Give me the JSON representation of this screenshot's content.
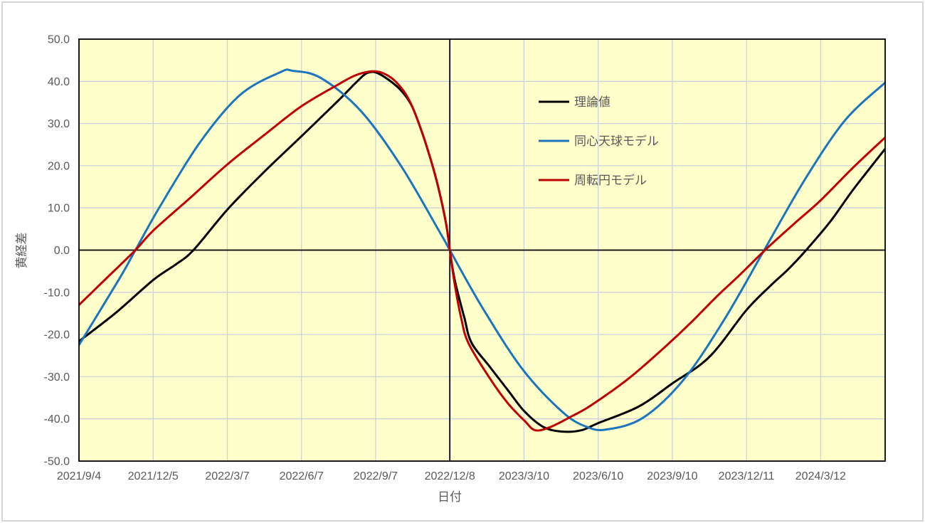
{
  "chart_data": {
    "type": "line",
    "title": "",
    "xlabel": "日付",
    "ylabel": "黄経差",
    "ylim": [
      -50,
      50
    ],
    "y_ticks": [
      50,
      40,
      30,
      20,
      10,
      0,
      -10,
      -20,
      -30,
      -40,
      -50
    ],
    "y_tick_labels": [
      "50.0",
      "40.0",
      "30.0",
      "20.0",
      "10.0",
      "0.0",
      "-10.0",
      "-20.0",
      "-30.0",
      "-40.0",
      "-50.0"
    ],
    "x_tick_labels": [
      "2021/9/4",
      "2021/12/5",
      "2022/3/7",
      "2022/6/7",
      "2022/9/7",
      "2022/12/8",
      "2023/3/10",
      "2023/6/10",
      "2023/9/10",
      "2023/12/11",
      "2024/3/12"
    ],
    "x_tick_days": [
      0,
      92,
      184,
      276,
      368,
      460,
      552,
      644,
      736,
      828,
      920
    ],
    "x_range_days": [
      0,
      1000
    ],
    "x_origin_date": "2021/9/4",
    "grid": true,
    "plot_bg": "#FFFFCC",
    "grid_color": "#CBD2DB",
    "axis_color": "#000000",
    "label_color": "#595959",
    "legend_position": "inside-top-center",
    "reference_lines": {
      "horizontal_y": 0,
      "vertical_day": 460,
      "vertical_date": "2022/12/8"
    },
    "series": [
      {
        "name": "理論値",
        "color": "#000000",
        "points": [
          [
            0,
            -21.6
          ],
          [
            46,
            -14.8
          ],
          [
            92,
            -7.1
          ],
          [
            120,
            -3.4
          ],
          [
            142,
            0
          ],
          [
            184,
            9.6
          ],
          [
            230,
            18.6
          ],
          [
            276,
            27.0
          ],
          [
            322,
            35.5
          ],
          [
            344,
            39.8
          ],
          [
            358,
            42.0
          ],
          [
            372,
            41.8
          ],
          [
            396,
            38.5
          ],
          [
            412,
            34.5
          ],
          [
            425,
            28.2
          ],
          [
            439,
            19.7
          ],
          [
            448,
            13.0
          ],
          [
            456,
            5.6
          ],
          [
            460,
            0
          ],
          [
            466,
            -7.0
          ],
          [
            478,
            -16.0
          ],
          [
            487,
            -22.0
          ],
          [
            509,
            -27.5
          ],
          [
            532,
            -33.2
          ],
          [
            553,
            -38.3
          ],
          [
            576,
            -41.9
          ],
          [
            599,
            -43.0
          ],
          [
            623,
            -42.7
          ],
          [
            644,
            -41.0
          ],
          [
            694,
            -37.1
          ],
          [
            736,
            -31.6
          ],
          [
            782,
            -25.3
          ],
          [
            828,
            -14.2
          ],
          [
            858,
            -8.4
          ],
          [
            880,
            -4.5
          ],
          [
            902,
            0
          ],
          [
            932,
            6.8
          ],
          [
            961,
            14.5
          ],
          [
            1000,
            24.0
          ]
        ]
      },
      {
        "name": "同心天球モデル",
        "color": "#1B75BC",
        "points": [
          [
            0,
            -22.5
          ],
          [
            50,
            -6.8
          ],
          [
            70,
            0
          ],
          [
            100,
            10.2
          ],
          [
            150,
            25.5
          ],
          [
            200,
            36.8
          ],
          [
            250,
            42.2
          ],
          [
            265,
            42.5
          ],
          [
            300,
            40.8
          ],
          [
            350,
            32.9
          ],
          [
            400,
            19.8
          ],
          [
            450,
            3.4
          ],
          [
            460,
            0
          ],
          [
            500,
            -13.5
          ],
          [
            550,
            -28.2
          ],
          [
            600,
            -38.4
          ],
          [
            630,
            -41.9
          ],
          [
            655,
            -42.5
          ],
          [
            700,
            -39.7
          ],
          [
            750,
            -30.7
          ],
          [
            800,
            -16.6
          ],
          [
            850,
            0
          ],
          [
            900,
            16.6
          ],
          [
            950,
            30.7
          ],
          [
            1000,
            39.7
          ]
        ]
      },
      {
        "name": "周転円モデル",
        "color": "#C00000",
        "points": [
          [
            0,
            -13.0
          ],
          [
            35,
            -6.5
          ],
          [
            70,
            0
          ],
          [
            92,
            4.6
          ],
          [
            138,
            12.4
          ],
          [
            184,
            20.3
          ],
          [
            230,
            27.3
          ],
          [
            276,
            34.1
          ],
          [
            322,
            39.3
          ],
          [
            344,
            41.5
          ],
          [
            366,
            42.4
          ],
          [
            382,
            41.5
          ],
          [
            396,
            39.3
          ],
          [
            410,
            35.4
          ],
          [
            425,
            28.2
          ],
          [
            439,
            19.7
          ],
          [
            448,
            13.0
          ],
          [
            456,
            5.6
          ],
          [
            460,
            0
          ],
          [
            466,
            -8.0
          ],
          [
            474,
            -16.0
          ],
          [
            483,
            -22.0
          ],
          [
            509,
            -30.2
          ],
          [
            532,
            -36.3
          ],
          [
            553,
            -40.5
          ],
          [
            566,
            -42.7
          ],
          [
            585,
            -41.9
          ],
          [
            610,
            -39.5
          ],
          [
            635,
            -36.8
          ],
          [
            682,
            -30.4
          ],
          [
            726,
            -23.1
          ],
          [
            760,
            -17.0
          ],
          [
            790,
            -11.2
          ],
          [
            820,
            -5.8
          ],
          [
            851,
            0
          ],
          [
            888,
            6.4
          ],
          [
            920,
            11.8
          ],
          [
            961,
            19.7
          ],
          [
            1000,
            26.7
          ]
        ]
      }
    ]
  }
}
